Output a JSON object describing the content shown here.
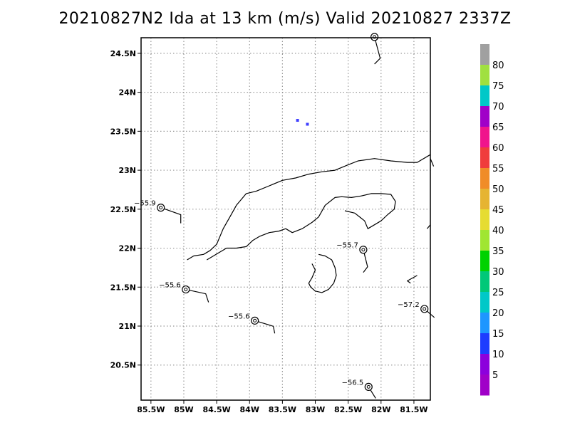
{
  "title": "20210827N2 Ida at 13 km (m/s) Valid 20210827 2337Z",
  "map": {
    "lon_range": [
      -85.65,
      -81.25
    ],
    "lat_range": [
      20.05,
      24.7
    ],
    "lon_ticks": [
      {
        "v": -85.5,
        "label": "85.5W"
      },
      {
        "v": -85.0,
        "label": "85W"
      },
      {
        "v": -84.5,
        "label": "84.5W"
      },
      {
        "v": -84.0,
        "label": "84W"
      },
      {
        "v": -83.5,
        "label": "83.5W"
      },
      {
        "v": -83.0,
        "label": "83W"
      },
      {
        "v": -82.5,
        "label": "82.5W"
      },
      {
        "v": -82.0,
        "label": "82W"
      },
      {
        "v": -81.5,
        "label": "81.5W"
      }
    ],
    "lat_ticks": [
      {
        "v": 24.5,
        "label": "24.5N"
      },
      {
        "v": 24.0,
        "label": "24N"
      },
      {
        "v": 23.5,
        "label": "23.5N"
      },
      {
        "v": 23.0,
        "label": "23N"
      },
      {
        "v": 22.5,
        "label": "22.5N"
      },
      {
        "v": 22.0,
        "label": "22N"
      },
      {
        "v": 21.5,
        "label": "21.5N"
      },
      {
        "v": 21.0,
        "label": "21N"
      },
      {
        "v": 20.5,
        "label": "20.5N"
      }
    ],
    "grid": "dotted",
    "coast_lines": [
      [
        [
          -84.65,
          21.85
        ],
        [
          -84.55,
          21.9
        ],
        [
          -84.45,
          21.95
        ],
        [
          -84.35,
          22.0
        ],
        [
          -84.2,
          22.0
        ],
        [
          -84.05,
          22.02
        ],
        [
          -83.95,
          22.1
        ],
        [
          -83.85,
          22.15
        ],
        [
          -83.7,
          22.2
        ],
        [
          -83.55,
          22.22
        ],
        [
          -83.45,
          22.25
        ],
        [
          -83.35,
          22.2
        ],
        [
          -83.2,
          22.25
        ],
        [
          -83.05,
          22.33
        ],
        [
          -82.95,
          22.4
        ],
        [
          -82.85,
          22.55
        ],
        [
          -82.7,
          22.65
        ],
        [
          -82.6,
          22.66
        ],
        [
          -82.45,
          22.65
        ],
        [
          -82.3,
          22.67
        ],
        [
          -82.15,
          22.7
        ],
        [
          -82.0,
          22.7
        ],
        [
          -81.85,
          22.69
        ],
        [
          -81.78,
          22.6
        ],
        [
          -81.8,
          22.5
        ],
        [
          -81.9,
          22.43
        ],
        [
          -82.0,
          22.35
        ],
        [
          -82.1,
          22.3
        ],
        [
          -82.2,
          22.25
        ],
        [
          -82.25,
          22.35
        ],
        [
          -82.4,
          22.45
        ],
        [
          -82.55,
          22.48
        ]
      ],
      [
        [
          -84.95,
          21.85
        ],
        [
          -84.85,
          21.9
        ],
        [
          -84.7,
          21.92
        ],
        [
          -84.6,
          21.97
        ],
        [
          -84.5,
          22.05
        ],
        [
          -84.4,
          22.25
        ],
        [
          -84.3,
          22.4
        ],
        [
          -84.2,
          22.55
        ],
        [
          -84.05,
          22.7
        ],
        [
          -83.9,
          22.73
        ],
        [
          -83.7,
          22.8
        ],
        [
          -83.5,
          22.87
        ],
        [
          -83.3,
          22.9
        ],
        [
          -83.1,
          22.95
        ],
        [
          -82.9,
          22.98
        ],
        [
          -82.7,
          23.0
        ],
        [
          -82.5,
          23.07
        ],
        [
          -82.35,
          23.12
        ],
        [
          -82.1,
          23.15
        ],
        [
          -81.85,
          23.12
        ],
        [
          -81.6,
          23.1
        ],
        [
          -81.45,
          23.1
        ],
        [
          -81.25,
          23.2
        ]
      ],
      [
        [
          -82.95,
          21.92
        ],
        [
          -82.85,
          21.9
        ],
        [
          -82.75,
          21.85
        ],
        [
          -82.7,
          21.75
        ],
        [
          -82.68,
          21.65
        ],
        [
          -82.72,
          21.55
        ],
        [
          -82.8,
          21.47
        ],
        [
          -82.9,
          21.43
        ],
        [
          -83.0,
          21.45
        ],
        [
          -83.07,
          21.5
        ],
        [
          -83.1,
          21.55
        ],
        [
          -83.05,
          21.62
        ],
        [
          -83.0,
          21.72
        ],
        [
          -83.05,
          21.8
        ]
      ],
      [
        [
          -81.25,
          23.15
        ],
        [
          -81.2,
          23.05
        ]
      ],
      [
        [
          -81.45,
          21.65
        ],
        [
          -81.6,
          21.58
        ],
        [
          -81.55,
          21.55
        ]
      ],
      [
        [
          -81.3,
          22.25
        ],
        [
          -81.25,
          22.3
        ]
      ]
    ],
    "stations": [
      {
        "lon": -85.35,
        "lat": 22.52,
        "value": "−55.9",
        "label_side": "left",
        "barb": [
          [
            0,
            0
          ],
          [
            28,
            10
          ],
          [
            28,
            22
          ]
        ]
      },
      {
        "lon": -84.97,
        "lat": 21.47,
        "value": "−55.6",
        "label_side": "left",
        "barb": [
          [
            0,
            0
          ],
          [
            28,
            6
          ],
          [
            32,
            18
          ]
        ]
      },
      {
        "lon": -83.92,
        "lat": 21.07,
        "value": "−55.6",
        "label_side": "left",
        "barb": [
          [
            0,
            0
          ],
          [
            26,
            8
          ],
          [
            28,
            18
          ]
        ]
      },
      {
        "lon": -82.27,
        "lat": 21.98,
        "value": "−55.7",
        "label_side": "left",
        "barb": [
          [
            0,
            0
          ],
          [
            6,
            24
          ],
          [
            0,
            32
          ]
        ]
      },
      {
        "lon": -81.34,
        "lat": 21.22,
        "value": "−57.2",
        "label_side": "left",
        "barb": [
          [
            0,
            0
          ],
          [
            14,
            12
          ]
        ]
      },
      {
        "lon": -82.19,
        "lat": 20.22,
        "value": "−56.5",
        "label_side": "left",
        "barb": [
          [
            0,
            0
          ],
          [
            10,
            16
          ]
        ]
      },
      {
        "lon": -82.1,
        "lat": 24.71,
        "value": "",
        "label_side": "left",
        "barb": [
          [
            0,
            0
          ],
          [
            8,
            30
          ],
          [
            0,
            38
          ]
        ]
      }
    ],
    "pixels": [
      {
        "lon": -83.27,
        "lat": 23.64,
        "color": "#4040ff"
      },
      {
        "lon": -83.12,
        "lat": 23.59,
        "color": "#4040ff"
      }
    ]
  },
  "legend": {
    "labels": [
      "80",
      "75",
      "70",
      "65",
      "60",
      "55",
      "50",
      "45",
      "40",
      "35",
      "30",
      "25",
      "20",
      "15",
      "10",
      "5"
    ],
    "colors": [
      "#a0a0a0",
      "#a0e040",
      "#00c8c8",
      "#a000c8",
      "#f0148c",
      "#f03c3c",
      "#f08c28",
      "#e6b432",
      "#e6dc32",
      "#a0e632",
      "#00d200",
      "#00c878",
      "#00c8c8",
      "#1e96ff",
      "#1e3cff",
      "#8c00dc",
      "#a000c8"
    ]
  }
}
